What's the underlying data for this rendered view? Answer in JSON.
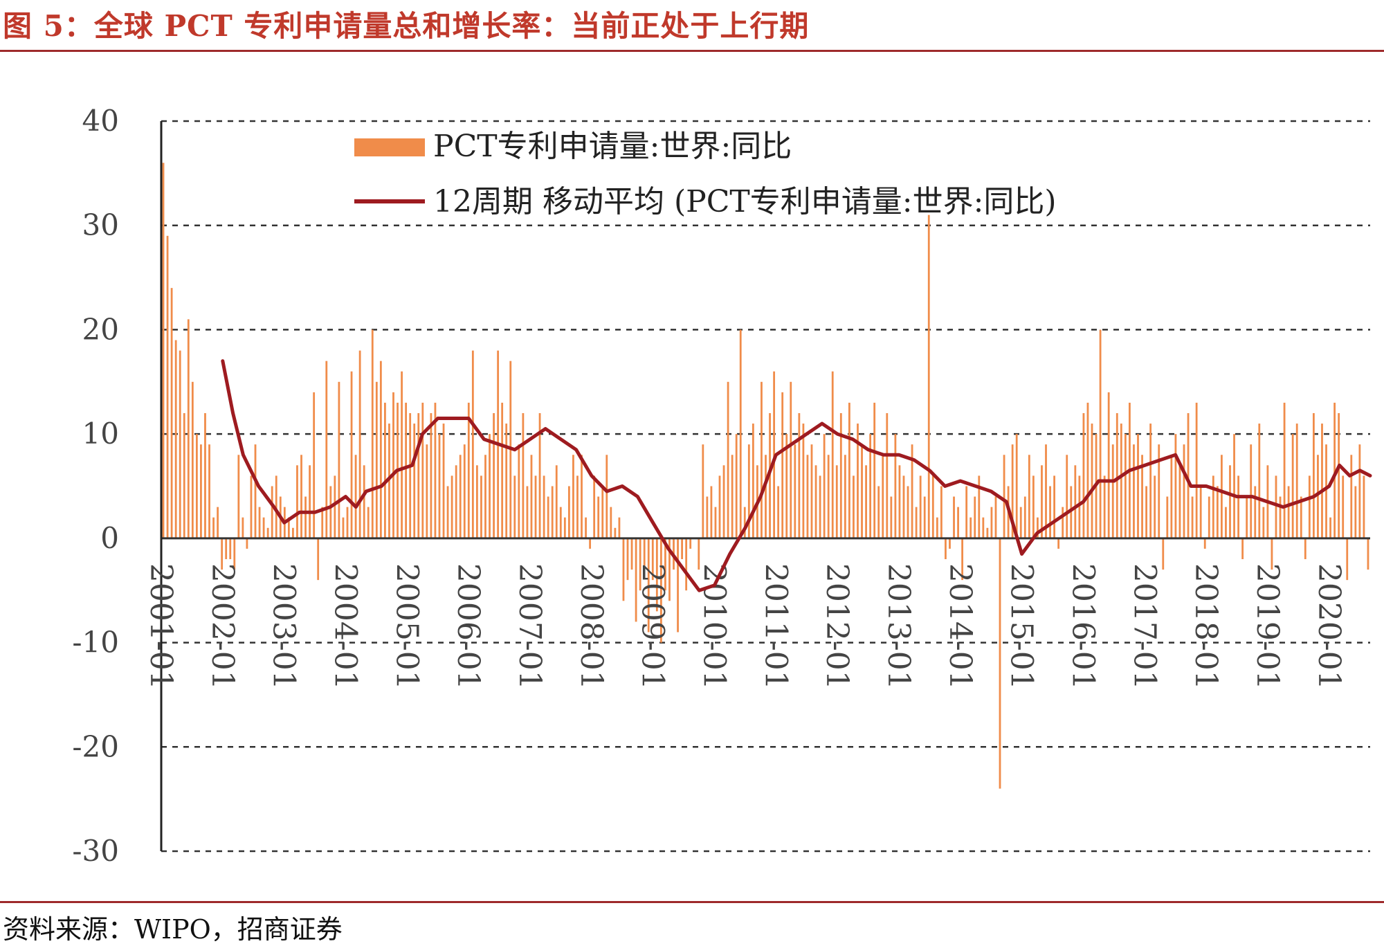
{
  "figure": {
    "title": "图 5：全球 PCT 专利申请量总和增长率：当前正处于上行期",
    "source": "资料来源：WIPO，招商证券"
  },
  "colors": {
    "bars": "#f08c4a",
    "line": "#9e1b20",
    "rule": "#9e2a2b",
    "grid": "#333333"
  },
  "chart_data": {
    "type": "bar",
    "ylim": [
      -30,
      40
    ],
    "yticks": [
      -30,
      -20,
      -10,
      0,
      10,
      20,
      30,
      40
    ],
    "ytick_labels": [
      "-30",
      "-20",
      "-10",
      "0",
      "10",
      "20",
      "30",
      "40"
    ],
    "grid": "horizontal dashed",
    "legend_position": "top-center",
    "x_start": "2001-01",
    "x_end": "2020-09",
    "xtick_labels": [
      "2001-01",
      "2002-01",
      "2003-01",
      "2004-01",
      "2005-01",
      "2006-01",
      "2007-01",
      "2008-01",
      "2009-01",
      "2010-01",
      "2011-01",
      "2012-01",
      "2013-01",
      "2014-01",
      "2015-01",
      "2016-01",
      "2017-01",
      "2018-01",
      "2019-01",
      "2020-01"
    ],
    "series": [
      {
        "name": "PCT专利申请量:世界:同比",
        "type": "bar",
        "values": [
          36,
          29,
          24,
          19,
          18,
          12,
          21,
          15,
          10,
          9,
          12,
          9,
          2,
          3,
          -3,
          -2,
          -2,
          -3,
          8,
          2,
          -1,
          6,
          9,
          3,
          2,
          1,
          5,
          6,
          4,
          3,
          2,
          1,
          7,
          8,
          4,
          7,
          14,
          -4,
          3,
          17,
          5,
          6,
          15,
          2,
          3,
          16,
          8,
          18,
          7,
          3,
          20,
          15,
          17,
          13,
          11,
          14,
          13,
          16,
          13,
          12,
          11,
          12,
          13,
          9,
          12,
          13,
          10,
          11,
          5,
          6,
          7,
          8,
          9,
          13,
          18,
          7,
          6,
          8,
          10,
          12,
          18,
          13,
          11,
          17,
          6,
          9,
          12,
          5,
          8,
          6,
          12,
          6,
          4,
          5,
          7,
          3,
          2,
          5,
          8,
          6,
          8,
          2,
          -1,
          6,
          4,
          5,
          8,
          3,
          1,
          2,
          -6,
          -4,
          -3,
          -8,
          -5,
          -3,
          -9,
          -4,
          -7,
          -10,
          -5,
          -6,
          -3,
          -9,
          -2,
          -5,
          -1,
          0,
          -3,
          9,
          4,
          5,
          3,
          6,
          7,
          15,
          8,
          10,
          20,
          3,
          9,
          11,
          7,
          15,
          8,
          12,
          16,
          5,
          14,
          10,
          15,
          9,
          12,
          11,
          8,
          9,
          7,
          6,
          10,
          8,
          16,
          7,
          12,
          8,
          13,
          6,
          11,
          9,
          7,
          10,
          13,
          5,
          8,
          12,
          4,
          10,
          7,
          6,
          5,
          9,
          3,
          6,
          4,
          31,
          6,
          2,
          5,
          -2,
          -1,
          4,
          3,
          -4,
          5,
          2,
          4,
          6,
          2,
          1,
          3,
          4,
          -24,
          8,
          5,
          9,
          10,
          3,
          4,
          8,
          6,
          2,
          7,
          9,
          5,
          6,
          -1,
          3,
          8,
          5,
          7,
          6,
          12,
          13,
          11,
          10,
          20,
          6,
          14,
          9,
          12,
          11,
          10,
          13,
          9,
          10,
          8,
          5,
          11,
          6,
          9,
          -3,
          4,
          8,
          10,
          7,
          9,
          12,
          4,
          13,
          5,
          -1,
          4,
          6,
          5,
          8,
          3,
          7,
          10,
          6,
          -2,
          4,
          9,
          5,
          11,
          3,
          7,
          -3,
          6,
          4,
          13,
          5,
          10,
          11,
          4,
          -2,
          6,
          12,
          8,
          11,
          9,
          2,
          13,
          12,
          6,
          -4,
          8,
          5,
          9,
          6,
          -3
        ],
        "note": "24 points/year approx., read off chart"
      },
      {
        "name": "12周期 移动平均 (PCT专利申请量:世界:同比)",
        "type": "line",
        "points": [
          [
            "2002-01",
            17
          ],
          [
            "2002-03",
            12
          ],
          [
            "2002-05",
            8
          ],
          [
            "2002-08",
            5
          ],
          [
            "2002-11",
            3
          ],
          [
            "2003-01",
            1.5
          ],
          [
            "2003-04",
            2.5
          ],
          [
            "2003-07",
            2.5
          ],
          [
            "2003-10",
            3
          ],
          [
            "2004-01",
            4
          ],
          [
            "2004-03",
            3
          ],
          [
            "2004-05",
            4.5
          ],
          [
            "2004-08",
            5
          ],
          [
            "2004-11",
            6.5
          ],
          [
            "2005-02",
            7
          ],
          [
            "2005-04",
            10
          ],
          [
            "2005-07",
            11.5
          ],
          [
            "2005-10",
            11.5
          ],
          [
            "2006-01",
            11.5
          ],
          [
            "2006-04",
            9.5
          ],
          [
            "2006-07",
            9
          ],
          [
            "2006-10",
            8.5
          ],
          [
            "2007-01",
            9.5
          ],
          [
            "2007-04",
            10.5
          ],
          [
            "2007-07",
            9.5
          ],
          [
            "2007-10",
            8.5
          ],
          [
            "2008-01",
            6
          ],
          [
            "2008-04",
            4.5
          ],
          [
            "2008-07",
            5
          ],
          [
            "2008-10",
            4
          ],
          [
            "2009-01",
            1.5
          ],
          [
            "2009-04",
            -1
          ],
          [
            "2009-07",
            -3
          ],
          [
            "2009-10",
            -5
          ],
          [
            "2010-01",
            -4.5
          ],
          [
            "2010-04",
            -1.5
          ],
          [
            "2010-07",
            1
          ],
          [
            "2010-10",
            4
          ],
          [
            "2011-01",
            8
          ],
          [
            "2011-04",
            9
          ],
          [
            "2011-07",
            10
          ],
          [
            "2011-10",
            11
          ],
          [
            "2012-01",
            10
          ],
          [
            "2012-04",
            9.5
          ],
          [
            "2012-07",
            8.5
          ],
          [
            "2012-10",
            8
          ],
          [
            "2013-01",
            8
          ],
          [
            "2013-04",
            7.5
          ],
          [
            "2013-07",
            6.5
          ],
          [
            "2013-10",
            5
          ],
          [
            "2014-01",
            5.5
          ],
          [
            "2014-04",
            5
          ],
          [
            "2014-07",
            4.5
          ],
          [
            "2014-10",
            3.5
          ],
          [
            "2015-01",
            -1.5
          ],
          [
            "2015-04",
            0.5
          ],
          [
            "2015-07",
            1.5
          ],
          [
            "2015-10",
            2.5
          ],
          [
            "2016-01",
            3.5
          ],
          [
            "2016-04",
            5.5
          ],
          [
            "2016-07",
            5.5
          ],
          [
            "2016-10",
            6.5
          ],
          [
            "2017-01",
            7
          ],
          [
            "2017-04",
            7.5
          ],
          [
            "2017-07",
            8
          ],
          [
            "2017-10",
            5
          ],
          [
            "2018-01",
            5
          ],
          [
            "2018-04",
            4.5
          ],
          [
            "2018-07",
            4
          ],
          [
            "2018-10",
            4
          ],
          [
            "2019-01",
            3.5
          ],
          [
            "2019-04",
            3
          ],
          [
            "2019-07",
            3.5
          ],
          [
            "2019-10",
            4
          ],
          [
            "2020-01",
            5
          ],
          [
            "2020-03",
            7
          ],
          [
            "2020-05",
            6
          ],
          [
            "2020-07",
            6.5
          ],
          [
            "2020-09",
            6
          ]
        ]
      }
    ]
  }
}
